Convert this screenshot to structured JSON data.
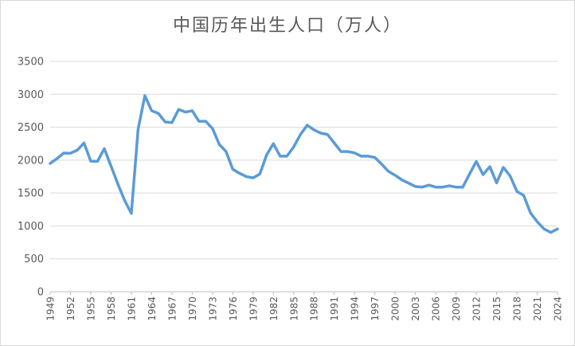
{
  "chart_data": {
    "type": "line",
    "title": "中国历年出生人口（万人）",
    "xlabel": "",
    "ylabel": "",
    "ylim": [
      0,
      3500
    ],
    "yticks": [
      0,
      500,
      1000,
      1500,
      2000,
      2500,
      3000,
      3500
    ],
    "xtick_labels": [
      "1949",
      "1952",
      "1955",
      "1958",
      "1961",
      "1964",
      "1967",
      "1970",
      "1973",
      "1976",
      "1979",
      "1982",
      "1985",
      "1988",
      "1991",
      "1994",
      "1997",
      "2000",
      "2003",
      "2006",
      "2009",
      "2012",
      "2015",
      "2018",
      "2021",
      "2024"
    ],
    "grid": true,
    "legend": "none",
    "series": [
      {
        "color": "#5b9bd5",
        "x": [
          1949,
          1950,
          1951,
          1952,
          1953,
          1954,
          1955,
          1956,
          1957,
          1958,
          1959,
          1960,
          1961,
          1962,
          1963,
          1964,
          1965,
          1966,
          1967,
          1968,
          1969,
          1970,
          1971,
          1972,
          1973,
          1974,
          1975,
          1976,
          1977,
          1978,
          1979,
          1980,
          1981,
          1982,
          1983,
          1984,
          1985,
          1986,
          1987,
          1988,
          1989,
          1990,
          1991,
          1992,
          1993,
          1994,
          1995,
          1996,
          1997,
          1998,
          1999,
          2000,
          2001,
          2002,
          2003,
          2004,
          2005,
          2006,
          2007,
          2008,
          2009,
          2010,
          2011,
          2012,
          2013,
          2014,
          2015,
          2016,
          2017,
          2018,
          2019,
          2020,
          2021,
          2022,
          2023,
          2024
        ],
        "y": [
          1950,
          2023,
          2107,
          2105,
          2151,
          2260,
          1984,
          1982,
          2175,
          1909,
          1640,
          1390,
          1190,
          2470,
          2980,
          2750,
          2710,
          2580,
          2570,
          2770,
          2730,
          2750,
          2590,
          2590,
          2480,
          2240,
          2130,
          1860,
          1800,
          1750,
          1730,
          1790,
          2080,
          2250,
          2060,
          2060,
          2200,
          2390,
          2530,
          2460,
          2410,
          2390,
          2260,
          2130,
          2130,
          2110,
          2060,
          2060,
          2040,
          1940,
          1830,
          1770,
          1700,
          1650,
          1600,
          1590,
          1620,
          1590,
          1590,
          1610,
          1590,
          1590,
          1790,
          1980,
          1780,
          1900,
          1655,
          1890,
          1760,
          1525,
          1465,
          1200,
          1065,
          956,
          902,
          954
        ]
      }
    ]
  }
}
